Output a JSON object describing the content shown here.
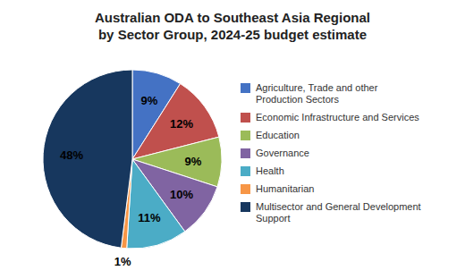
{
  "chart_data": {
    "type": "pie",
    "title": "Australian ODA to Southeast Asia Regional\nby Sector Group, 2024-25 budget estimate",
    "categories": [
      "Agriculture, Trade and other\nProduction Sectors",
      "Economic Infrastructure and Services",
      "Education",
      "Governance",
      "Health",
      "Humanitarian",
      "Multisector and General Development\nSupport"
    ],
    "values": [
      9,
      12,
      9,
      10,
      11,
      1,
      48
    ],
    "value_labels": [
      "9%",
      "12%",
      "9%",
      "10%",
      "11%",
      "1%",
      "48%"
    ],
    "data_labels": true,
    "colors": [
      "#4472C4",
      "#C0504D",
      "#9BBB59",
      "#8064A2",
      "#4BACC6",
      "#F79646",
      "#17375E"
    ],
    "legend": "right"
  }
}
